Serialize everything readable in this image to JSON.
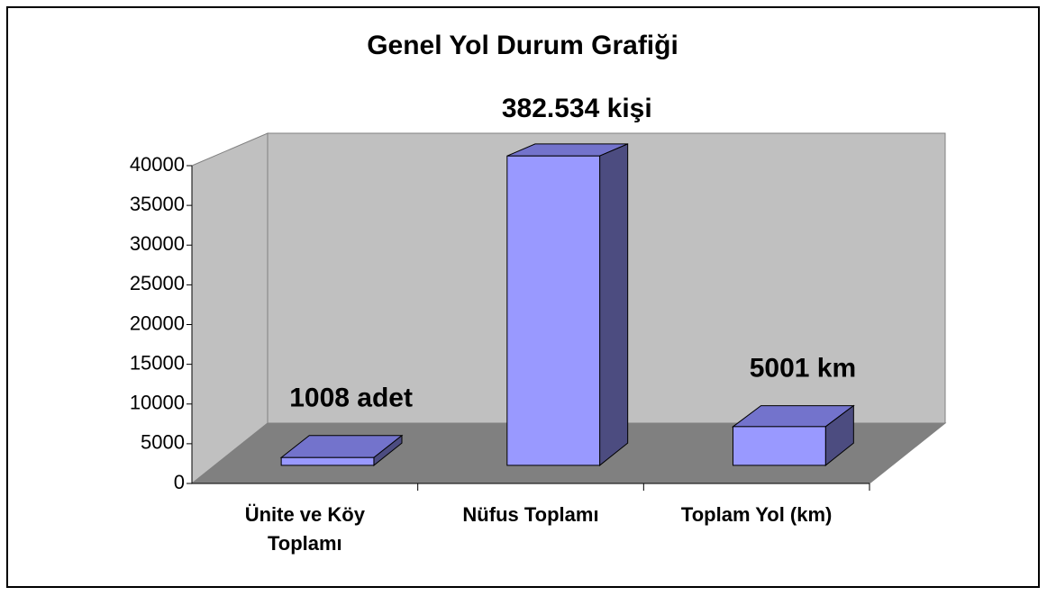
{
  "chart_data": {
    "type": "bar3d",
    "title": "Genel Yol Durum Grafiği",
    "categories": [
      "Ünite ve Köy Toplamı",
      "Nüfus Toplamı",
      "Toplam Yol (km)"
    ],
    "values": [
      1008,
      382534,
      5001
    ],
    "value_labels": [
      "1008 adet",
      "382.534 kişi",
      "5001 km"
    ],
    "color": "#9999ff",
    "ylim": [
      0,
      40000
    ],
    "yticks": [
      0,
      5000,
      10000,
      15000,
      20000,
      25000,
      30000,
      35000,
      40000
    ]
  }
}
